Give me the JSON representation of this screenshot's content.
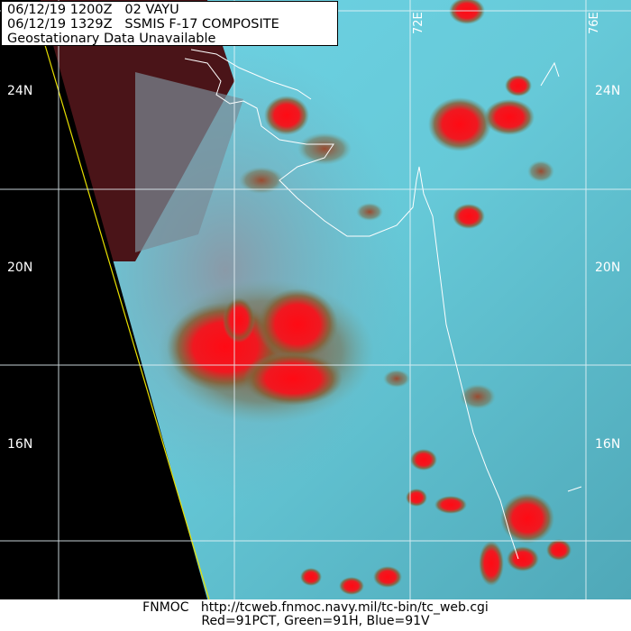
{
  "header": {
    "line1": "06/12/19 1200Z   02 VAYU",
    "line2": "06/12/19 1329Z   SSMIS F-17 COMPOSITE",
    "line3": "Geostationary Data Unavailable"
  },
  "grid_labels": {
    "lat": [
      "24N",
      "20N",
      "16N"
    ],
    "lon": [
      "72E",
      "76E"
    ]
  },
  "footer": {
    "line1": "FNMOC   http://tcweb.fnmoc.navy.mil/tc-bin/tc_web.cgi",
    "line2": "Red=91PCT, Green=91H, Blue=91V"
  },
  "colors": {
    "background": "#5fcfe0",
    "convection": "#ff1010",
    "no_data": "#000000"
  }
}
